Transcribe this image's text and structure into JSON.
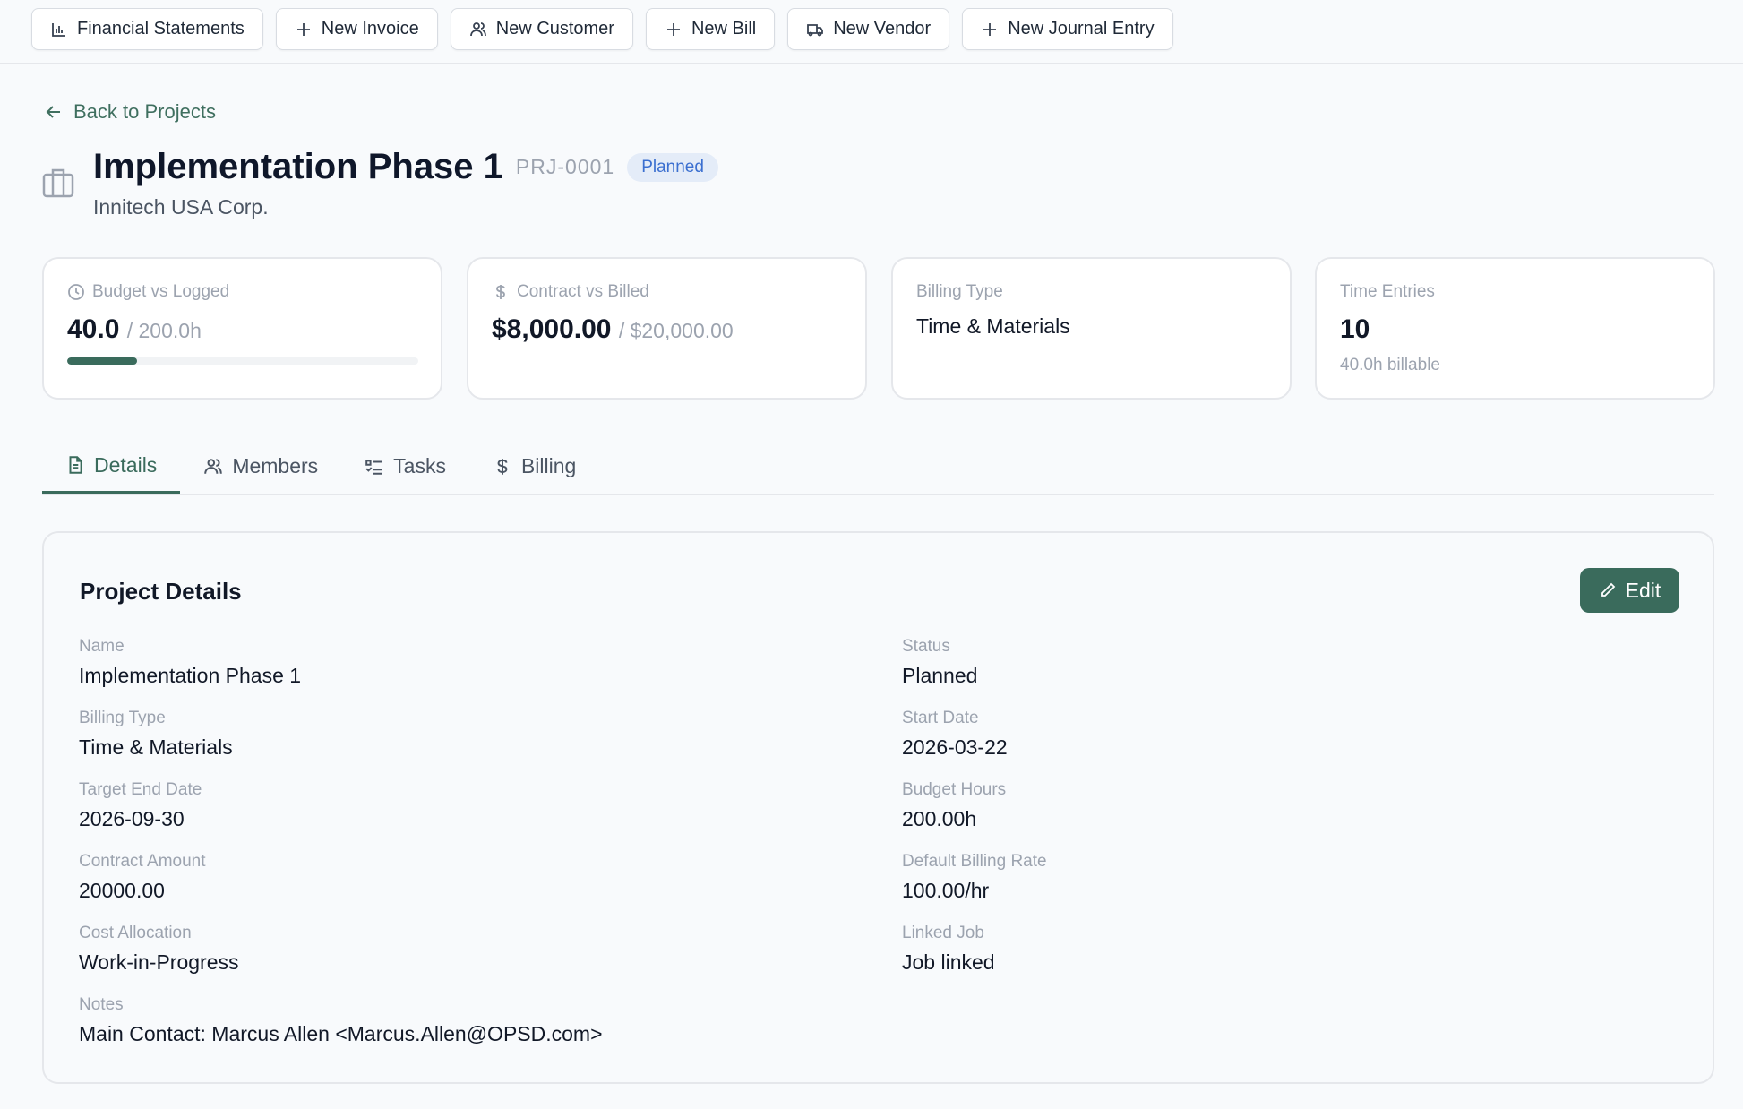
{
  "toolbar": {
    "buttons": [
      {
        "label": "Financial Statements",
        "icon": "bar-chart-icon"
      },
      {
        "label": "New Invoice",
        "icon": "plus-icon"
      },
      {
        "label": "New Customer",
        "icon": "users-icon"
      },
      {
        "label": "New Bill",
        "icon": "plus-icon"
      },
      {
        "label": "New Vendor",
        "icon": "truck-icon"
      },
      {
        "label": "New Journal Entry",
        "icon": "plus-icon"
      }
    ]
  },
  "back_link": "Back to Projects",
  "header": {
    "title": "Implementation Phase 1",
    "code": "PRJ-0001",
    "status": "Planned",
    "customer": "Innitech USA Corp."
  },
  "cards": {
    "budget": {
      "label": "Budget vs Logged",
      "value": "40.0",
      "total": "/ 200.0h",
      "progress_percent": 20
    },
    "contract": {
      "label": "Contract vs Billed",
      "value": "$8,000.00",
      "total": "/ $20,000.00"
    },
    "billing": {
      "label": "Billing Type",
      "value": "Time & Materials"
    },
    "time": {
      "label": "Time Entries",
      "value": "10",
      "sub": "40.0h billable"
    }
  },
  "tabs": [
    {
      "label": "Details",
      "active": true
    },
    {
      "label": "Members"
    },
    {
      "label": "Tasks"
    },
    {
      "label": "Billing"
    }
  ],
  "details": {
    "title": "Project Details",
    "edit_label": "Edit",
    "fields": [
      {
        "label": "Name",
        "value": "Implementation Phase 1"
      },
      {
        "label": "Status",
        "value": "Planned"
      },
      {
        "label": "Billing Type",
        "value": "Time & Materials"
      },
      {
        "label": "Start Date",
        "value": "2026-03-22"
      },
      {
        "label": "Target End Date",
        "value": "2026-09-30"
      },
      {
        "label": "Budget Hours",
        "value": "200.00h"
      },
      {
        "label": "Contract Amount",
        "value": "20000.00"
      },
      {
        "label": "Default Billing Rate",
        "value": "100.00/hr"
      },
      {
        "label": "Cost Allocation",
        "value": "Work-in-Progress"
      },
      {
        "label": "Linked Job",
        "value": "Job linked"
      },
      {
        "label": "Notes",
        "value": "Main Contact: Marcus Allen <Marcus.Allen@OPSD.com>"
      }
    ]
  },
  "colors": {
    "accent": "#3a6b5c",
    "badge_bg": "#e4ecf8",
    "badge_text": "#3b6fd0"
  }
}
